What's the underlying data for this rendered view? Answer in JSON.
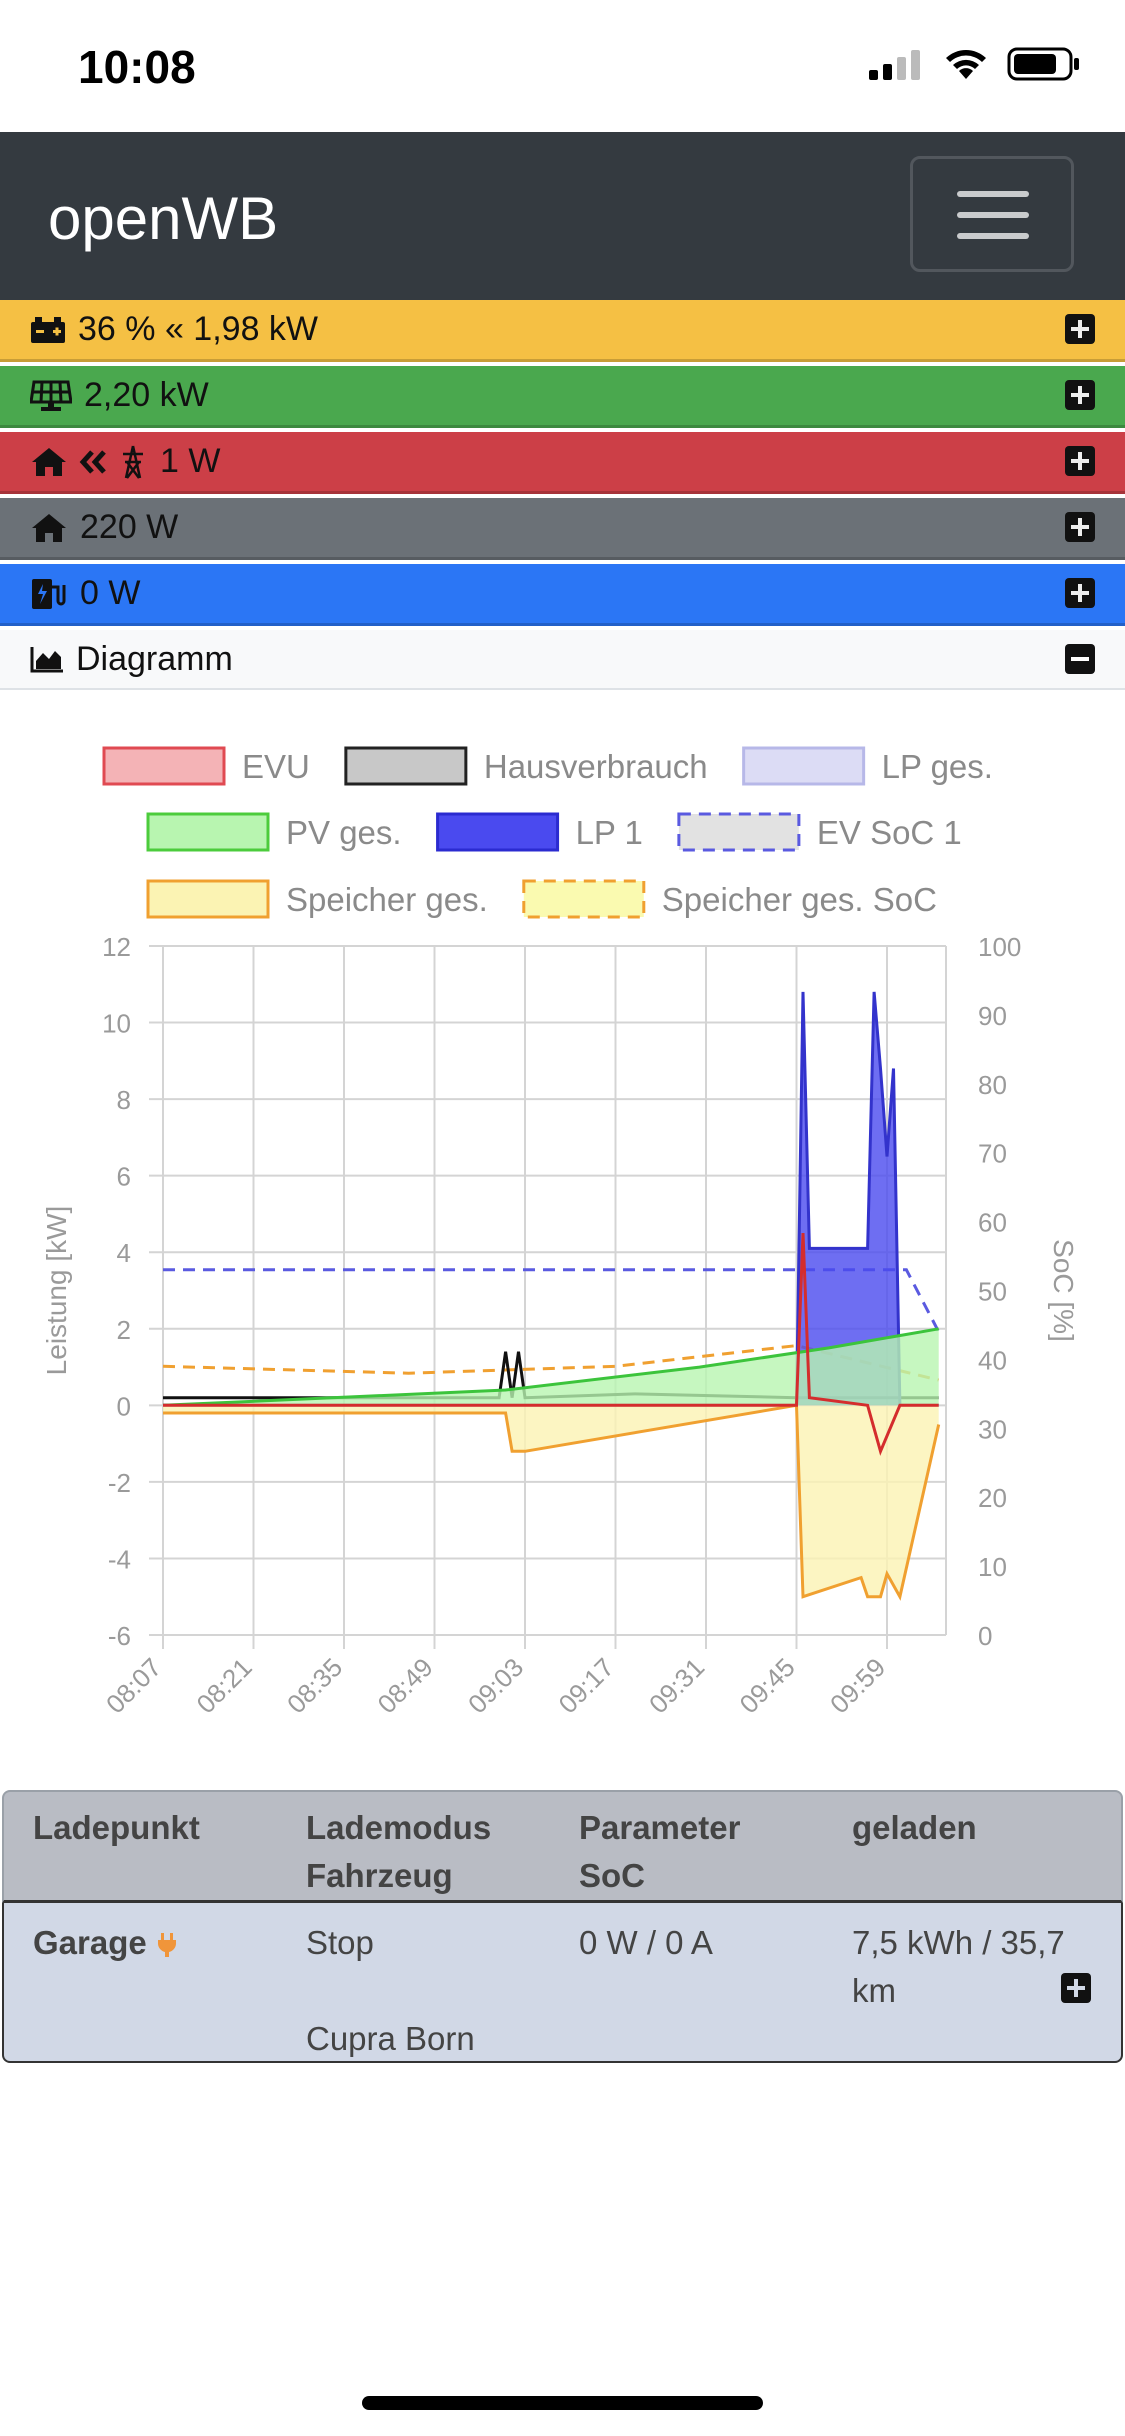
{
  "status_bar": {
    "time": "10:08"
  },
  "navbar": {
    "brand": "openWB"
  },
  "rows": {
    "battery": {
      "text": "36 % « 1,98 kW",
      "color": "#f5c044"
    },
    "pv": {
      "text": "2,20 kW",
      "color": "#4aa84e"
    },
    "grid": {
      "text": "1 W",
      "color": "#cc3f47"
    },
    "house": {
      "text": "220 W",
      "color": "#6b7177"
    },
    "charge": {
      "text": "0 W",
      "color": "#2b76f5"
    },
    "diagram": {
      "text": "Diagramm"
    }
  },
  "chart_data": {
    "type": "line",
    "legend": [
      "EVU",
      "Hausverbrauch",
      "LP ges.",
      "PV ges.",
      "LP 1",
      "EV SoC 1",
      "Speicher ges.",
      "Speicher ges. SoC"
    ],
    "x_ticks": [
      "08:07",
      "08:21",
      "08:35",
      "08:49",
      "09:03",
      "09:17",
      "09:31",
      "09:45",
      "09:59"
    ],
    "ylabel": "Leistung [kW]",
    "y2label": "SoC [%]",
    "ylim": [
      -6,
      12
    ],
    "y2lim": [
      0,
      100
    ],
    "y_ticks": [
      "12",
      "10",
      "8",
      "6",
      "4",
      "2",
      "0",
      "-2",
      "-4",
      "-6"
    ],
    "y2_ticks": [
      "100",
      "90",
      "80",
      "70",
      "60",
      "50",
      "40",
      "30",
      "20",
      "10",
      "0"
    ],
    "series": [
      {
        "name": "EV SoC 1",
        "axis": "y2",
        "x": [
          "08:07",
          "10:02",
          "10:07"
        ],
        "values": [
          53,
          53,
          44
        ]
      },
      {
        "name": "Speicher ges. SoC",
        "axis": "y2",
        "x": [
          "08:07",
          "08:45",
          "09:17",
          "09:45",
          "10:07"
        ],
        "values": [
          39,
          38,
          39,
          42,
          37
        ]
      },
      {
        "name": "Hausverbrauch",
        "axis": "y",
        "x": [
          "08:07",
          "08:59",
          "09:00",
          "09:01",
          "09:02",
          "09:03",
          "09:20",
          "09:45",
          "10:07"
        ],
        "values": [
          0.2,
          0.2,
          1.4,
          0.2,
          1.4,
          0.2,
          0.3,
          0.2,
          0.2
        ]
      },
      {
        "name": "LP 1",
        "axis": "y",
        "x": [
          "08:07",
          "09:45",
          "09:46",
          "09:47",
          "09:56",
          "09:57",
          "09:58",
          "09:59",
          "10:00",
          "10:01",
          "10:07"
        ],
        "values": [
          0,
          0,
          10.8,
          4.1,
          4.1,
          10.8,
          8.8,
          6.5,
          8.8,
          0,
          0
        ]
      },
      {
        "name": "PV ges.",
        "axis": "y",
        "x": [
          "08:07",
          "09:00",
          "09:30",
          "09:50",
          "10:07"
        ],
        "values": [
          0,
          0.4,
          1.0,
          1.5,
          2.0
        ]
      },
      {
        "name": "Speicher ges.",
        "axis": "y",
        "x": [
          "08:07",
          "09:00",
          "09:01",
          "09:03",
          "09:45",
          "09:46",
          "09:55",
          "09:56",
          "09:58",
          "09:59",
          "10:01",
          "10:07"
        ],
        "values": [
          -0.2,
          -0.2,
          -1.2,
          -1.2,
          0,
          -5,
          -4.5,
          -5,
          -5,
          -4.4,
          -5,
          -0.5
        ]
      },
      {
        "name": "EVU",
        "axis": "y",
        "x": [
          "08:07",
          "09:45",
          "09:46",
          "09:47",
          "09:56",
          "09:58",
          "10:01",
          "10:07"
        ],
        "values": [
          0,
          0,
          4.5,
          0.2,
          0,
          -1.2,
          0,
          0
        ]
      }
    ]
  },
  "table": {
    "headers": [
      "Ladepunkt",
      "Lademodus\nFahrzeug",
      "Parameter\nSoC",
      "geladen"
    ],
    "row": {
      "name": "Garage",
      "mode": "Stop",
      "vehicle": "Cupra Born",
      "params": "0 W / 0 A",
      "charged": "7,5 kWh / 35,7 km"
    }
  }
}
